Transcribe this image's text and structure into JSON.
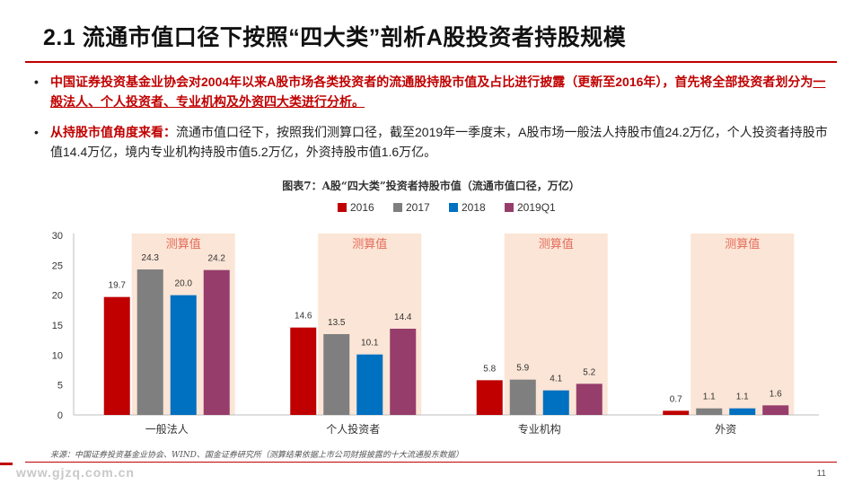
{
  "header": {
    "title": "2.1 流通市值口径下按照“四大类”剖析A股投资者持股规模"
  },
  "bullets": [
    {
      "text_a": "中国证券投资基金业协会对2004年以来A股市场各类投资者的流通股持股市值及占比进行披露（更新至2016年），首先将",
      "text_b": "全部投资者划分为",
      "text_c": "一般法人、个人投资者、专业机构及外资四大类进行分析。"
    },
    {
      "lead": "从持股市值角度来看：",
      "text": "流通市值口径下，按照我们测算口径，截至2019年一季度末，A股市场一般法人持股市值24.2万亿，个人投资者持股市值14.4万亿，境内专业机构持股市值5.2万亿，外资持股市值1.6万亿。"
    }
  ],
  "figure": {
    "caption": "图表7：A股“四大类”投资者持股市值（流通市值口径，万亿）",
    "source": "来源：中国证券投资基金业协会、WIND、国金证券研究所（测算结果依据上市公司财报披露的十大流通股东数据）"
  },
  "footer": {
    "watermark": "www.gjzq.com.cn",
    "page": "11"
  },
  "chart_data": {
    "type": "bar",
    "categories": [
      "一般法人",
      "个人投资者",
      "专业机构",
      "外资"
    ],
    "series": [
      {
        "name": "2016",
        "values": [
          19.7,
          14.6,
          5.8,
          0.7
        ],
        "color": "#c00000"
      },
      {
        "name": "2017",
        "values": [
          24.3,
          13.5,
          5.9,
          1.1
        ],
        "color": "#7f7f7f"
      },
      {
        "name": "2018",
        "values": [
          20.0,
          10.1,
          4.1,
          1.1
        ],
        "color": "#0070c0"
      },
      {
        "name": "2019Q1",
        "values": [
          24.2,
          14.4,
          5.2,
          1.6
        ],
        "color": "#963d6b"
      }
    ],
    "estimate_label": "测算值",
    "estimate_series": "2019Q1",
    "ylim": [
      0,
      30
    ],
    "yticks": [
      0,
      5,
      10,
      15,
      20,
      25,
      30
    ],
    "legend": "top-center",
    "grid": false
  }
}
